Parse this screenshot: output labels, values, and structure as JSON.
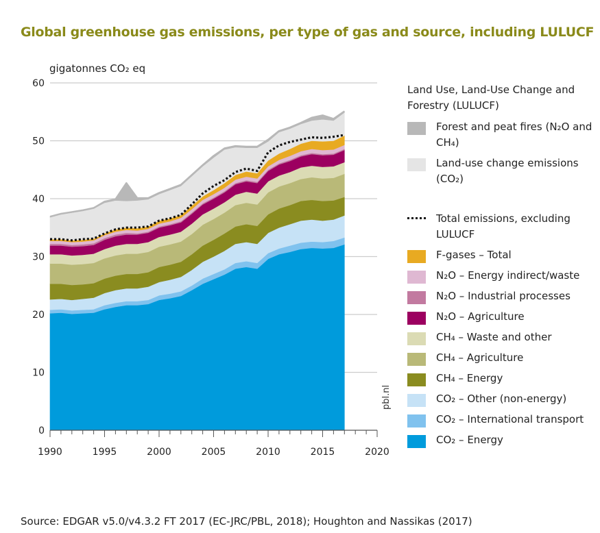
{
  "title": "Global greenhouse gas emissions, per type of gas and source, including LULUCF",
  "y_unit_label": "gigatonnes CO₂ eq",
  "source": "Source: EDGAR v5.0/v4.3.2 FT 2017 (EC-JRC/PBL, 2018); Houghton and Nassikas (2017)",
  "watermark": "pbl.nl",
  "legend": {
    "lulucf_heading": "Land Use, Land-Use Change and Forestry (LULUCF)",
    "items": [
      {
        "key": "fires",
        "label": "Forest and peat fires (N₂O and CH₄)",
        "color": "#b8b8b8"
      },
      {
        "key": "landuse",
        "label": "Land-use change emissions (CO₂)",
        "color": "#e5e5e5"
      },
      {
        "key": "total_line",
        "label": "Total emissions, excluding LULUCF",
        "color": "#111111"
      },
      {
        "key": "fgas",
        "label": "F-gases – Total",
        "color": "#e8aa22"
      },
      {
        "key": "n2o_energy",
        "label": "N₂O – Energy indirect/waste",
        "color": "#dfb8d2"
      },
      {
        "key": "n2o_ind",
        "label": "N₂O – Industrial processes",
        "color": "#c27aa0"
      },
      {
        "key": "n2o_agri",
        "label": "N₂O – Agriculture",
        "color": "#9c0060"
      },
      {
        "key": "ch4_waste",
        "label": "CH₄ – Waste and other",
        "color": "#dbdbb4"
      },
      {
        "key": "ch4_agri",
        "label": "CH₄ – Agriculture",
        "color": "#b9b978"
      },
      {
        "key": "ch4_energy",
        "label": "CH₄ – Energy",
        "color": "#8a8c20"
      },
      {
        "key": "co2_other",
        "label": "CO₂ – Other (non-energy)",
        "color": "#c6e2f6"
      },
      {
        "key": "co2_intl",
        "label": "CO₂ – International transport",
        "color": "#80c2ee"
      },
      {
        "key": "co2_energy",
        "label": "CO₂ – Energy",
        "color": "#009bdc"
      }
    ]
  },
  "chart_data": {
    "type": "area",
    "stacked": true,
    "title": "Global greenhouse gas emissions, per type of gas and source, including LULUCF",
    "xlabel": "",
    "ylabel": "gigatonnes CO₂ eq",
    "xlim": [
      1990,
      2020
    ],
    "ylim": [
      0,
      60
    ],
    "x_ticks": [
      1990,
      1995,
      2000,
      2005,
      2010,
      2015,
      2020
    ],
    "y_ticks": [
      0,
      10,
      20,
      30,
      40,
      50,
      60
    ],
    "grid": true,
    "legend_position": "right",
    "x": [
      1990,
      1991,
      1992,
      1993,
      1994,
      1995,
      1996,
      1997,
      1998,
      1999,
      2000,
      2001,
      2002,
      2003,
      2004,
      2005,
      2006,
      2007,
      2008,
      2009,
      2010,
      2011,
      2012,
      2013,
      2014,
      2015,
      2016,
      2017
    ],
    "series": [
      {
        "name": "CO₂ – Energy",
        "key": "co2_energy",
        "values": [
          20.2,
          20.3,
          20.1,
          20.2,
          20.3,
          20.9,
          21.3,
          21.6,
          21.6,
          21.8,
          22.5,
          22.8,
          23.2,
          24.2,
          25.3,
          26.1,
          26.9,
          27.9,
          28.2,
          27.9,
          29.6,
          30.4,
          30.8,
          31.3,
          31.5,
          31.4,
          31.5,
          32.1
        ]
      },
      {
        "name": "CO₂ – International transport",
        "key": "co2_intl",
        "values": [
          0.6,
          0.6,
          0.6,
          0.6,
          0.6,
          0.7,
          0.7,
          0.7,
          0.7,
          0.7,
          0.8,
          0.8,
          0.8,
          0.8,
          0.9,
          0.9,
          0.9,
          1.0,
          1.0,
          1.0,
          1.0,
          1.0,
          1.1,
          1.1,
          1.1,
          1.1,
          1.2,
          1.2
        ]
      },
      {
        "name": "CO₂ – Other (non-energy)",
        "key": "co2_other",
        "values": [
          1.8,
          1.8,
          1.8,
          1.9,
          2.0,
          2.1,
          2.2,
          2.2,
          2.2,
          2.3,
          2.3,
          2.4,
          2.5,
          2.7,
          2.9,
          3.0,
          3.2,
          3.3,
          3.3,
          3.3,
          3.5,
          3.6,
          3.7,
          3.8,
          3.8,
          3.7,
          3.7,
          3.8
        ]
      },
      {
        "name": "CH₄ – Energy",
        "key": "ch4_energy",
        "values": [
          2.7,
          2.6,
          2.6,
          2.5,
          2.5,
          2.5,
          2.5,
          2.5,
          2.5,
          2.5,
          2.6,
          2.6,
          2.6,
          2.7,
          2.8,
          2.9,
          3.0,
          3.0,
          3.1,
          3.1,
          3.2,
          3.3,
          3.3,
          3.4,
          3.4,
          3.4,
          3.3,
          3.2
        ]
      },
      {
        "name": "CH₄ – Agriculture",
        "key": "ch4_agri",
        "values": [
          3.5,
          3.5,
          3.5,
          3.5,
          3.5,
          3.5,
          3.5,
          3.5,
          3.5,
          3.5,
          3.5,
          3.5,
          3.5,
          3.5,
          3.6,
          3.6,
          3.6,
          3.7,
          3.7,
          3.7,
          3.8,
          3.8,
          3.8,
          3.8,
          3.9,
          3.9,
          3.9,
          4.0
        ]
      },
      {
        "name": "CH₄ – Waste and other",
        "key": "ch4_waste",
        "values": [
          1.6,
          1.6,
          1.6,
          1.6,
          1.6,
          1.6,
          1.7,
          1.7,
          1.7,
          1.7,
          1.7,
          1.7,
          1.7,
          1.8,
          1.8,
          1.8,
          1.8,
          1.8,
          1.9,
          1.9,
          1.9,
          1.9,
          1.9,
          2.0,
          2.0,
          2.0,
          2.0,
          2.0
        ]
      },
      {
        "name": "N₂O – Agriculture",
        "key": "n2o_agri",
        "values": [
          1.5,
          1.5,
          1.5,
          1.5,
          1.5,
          1.6,
          1.6,
          1.6,
          1.6,
          1.6,
          1.6,
          1.6,
          1.6,
          1.7,
          1.7,
          1.7,
          1.7,
          1.8,
          1.8,
          1.8,
          1.8,
          1.9,
          1.9,
          1.9,
          2.0,
          2.0,
          2.0,
          2.1
        ]
      },
      {
        "name": "N₂O – Industrial processes",
        "key": "n2o_ind",
        "values": [
          0.3,
          0.3,
          0.3,
          0.3,
          0.3,
          0.3,
          0.3,
          0.3,
          0.2,
          0.2,
          0.2,
          0.2,
          0.2,
          0.2,
          0.2,
          0.2,
          0.2,
          0.2,
          0.2,
          0.2,
          0.2,
          0.2,
          0.2,
          0.2,
          0.2,
          0.2,
          0.2,
          0.2
        ]
      },
      {
        "name": "N₂O – Energy indirect/waste",
        "key": "n2o_energy",
        "values": [
          0.5,
          0.5,
          0.5,
          0.5,
          0.5,
          0.5,
          0.5,
          0.5,
          0.5,
          0.5,
          0.5,
          0.5,
          0.6,
          0.6,
          0.6,
          0.6,
          0.6,
          0.6,
          0.6,
          0.6,
          0.6,
          0.6,
          0.7,
          0.7,
          0.7,
          0.7,
          0.7,
          0.7
        ]
      },
      {
        "name": "F-gases – Total",
        "key": "fgas",
        "values": [
          0.3,
          0.3,
          0.3,
          0.3,
          0.3,
          0.3,
          0.4,
          0.4,
          0.4,
          0.4,
          0.5,
          0.5,
          0.5,
          0.6,
          0.6,
          0.7,
          0.8,
          0.8,
          0.9,
          0.9,
          1.0,
          1.1,
          1.2,
          1.3,
          1.4,
          1.5,
          1.5,
          1.6
        ]
      },
      {
        "name": "Land-use change emissions (CO₂)",
        "key": "landuse",
        "values": [
          3.8,
          4.3,
          4.8,
          5.0,
          5.2,
          5.3,
          5.0,
          4.6,
          4.8,
          4.7,
          4.6,
          4.9,
          5.0,
          5.1,
          5.2,
          5.6,
          5.8,
          4.8,
          4.1,
          4.4,
          3.3,
          3.7,
          3.5,
          3.4,
          3.5,
          3.8,
          3.5,
          4.0
        ]
      },
      {
        "name": "Forest and peat fires (N₂O and CH₄)",
        "key": "fires",
        "values": [
          0.1,
          0.1,
          0.1,
          0.1,
          0.1,
          0.2,
          0.2,
          3.1,
          0.4,
          0.2,
          0.2,
          0.2,
          0.2,
          0.2,
          0.2,
          0.3,
          0.2,
          0.2,
          0.2,
          0.2,
          0.3,
          0.2,
          0.2,
          0.2,
          0.5,
          0.7,
          0.3,
          0.2
        ]
      }
    ],
    "line_series": [
      {
        "name": "Total emissions, excluding LULUCF",
        "key": "total_line",
        "style": "dotted",
        "values": [
          33.0,
          33.0,
          32.8,
          33.0,
          33.1,
          34.0,
          34.7,
          35.0,
          35.0,
          35.2,
          36.2,
          36.6,
          37.2,
          39.0,
          40.9,
          42.2,
          43.2,
          44.6,
          45.2,
          44.8,
          48.0,
          49.2,
          49.8,
          50.2,
          50.6,
          50.5,
          50.7,
          51.0
        ]
      }
    ]
  }
}
